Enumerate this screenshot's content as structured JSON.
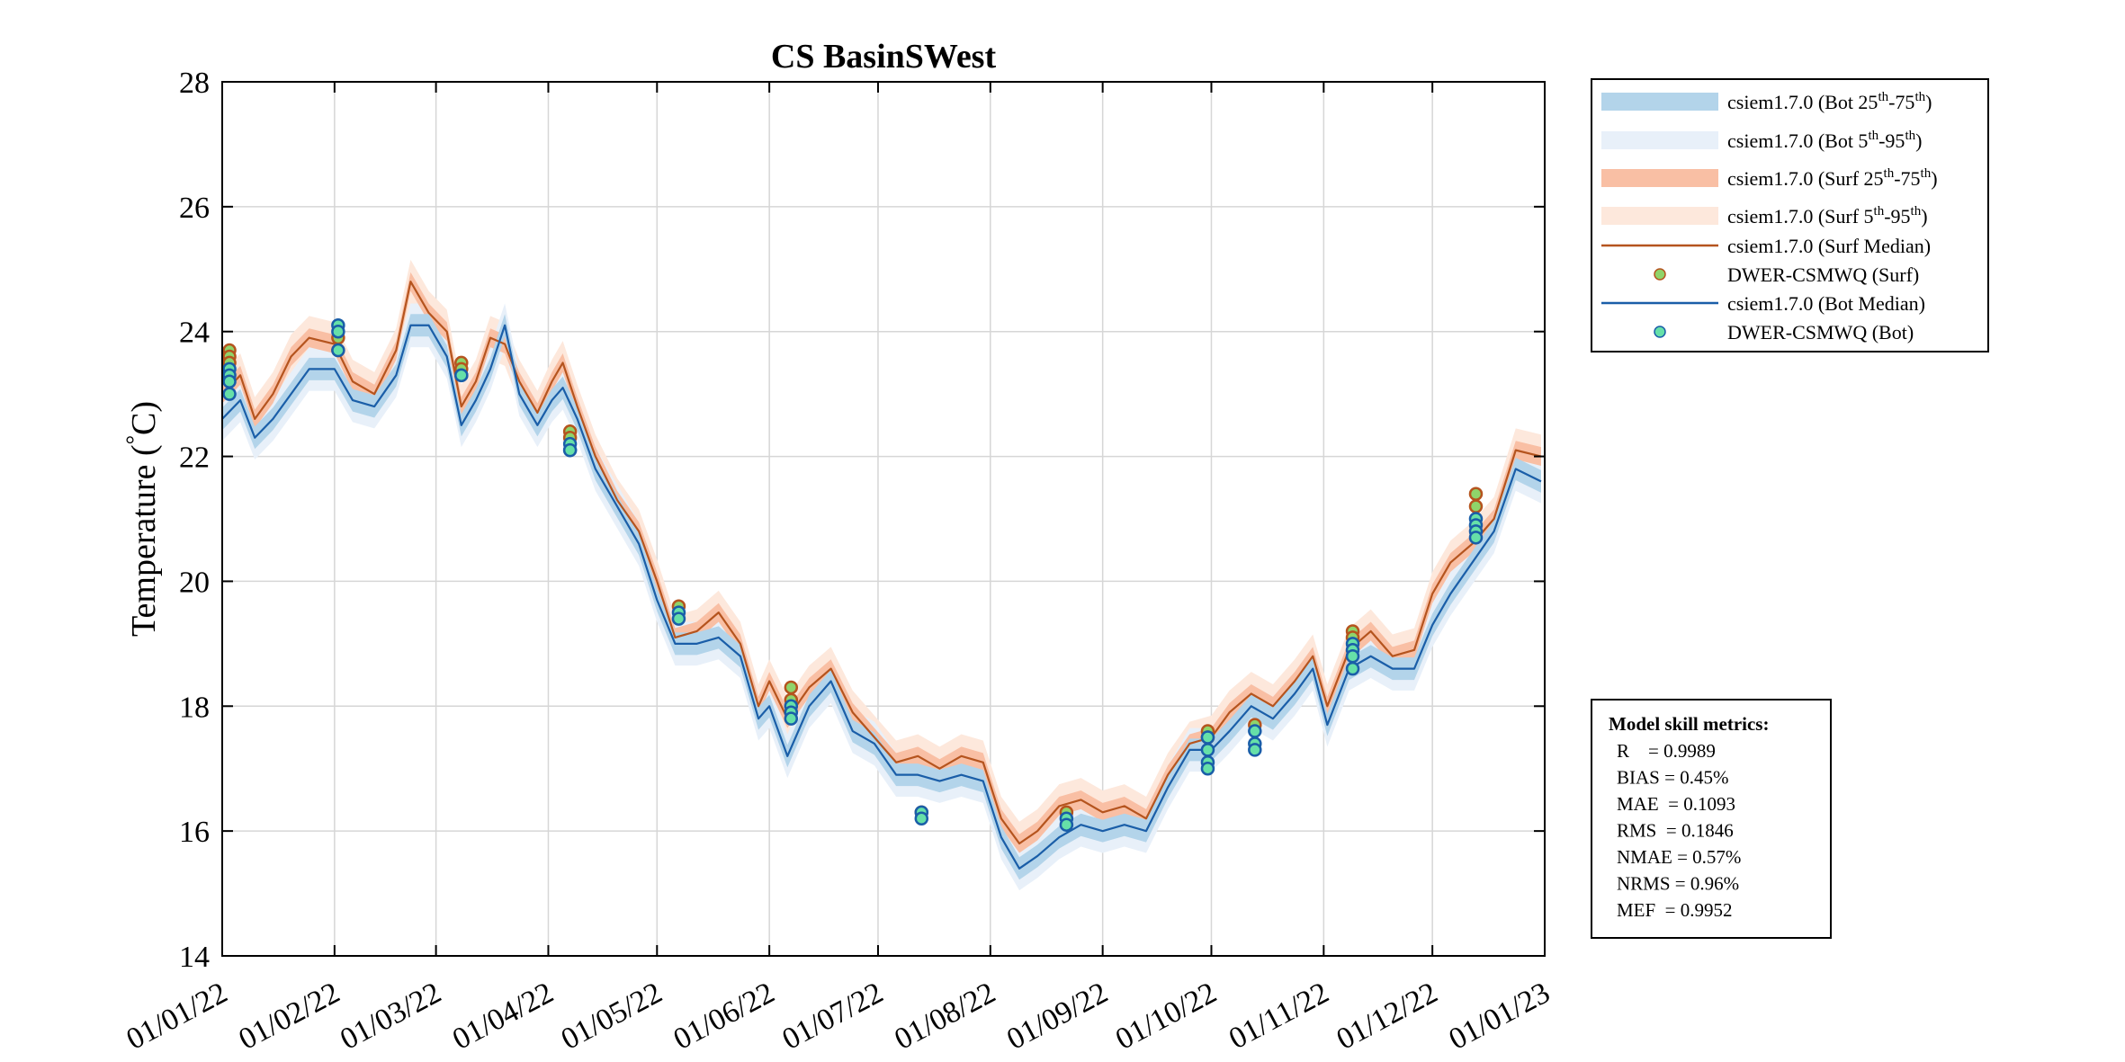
{
  "chart_data": {
    "type": "line",
    "title": "CS BasinSWest",
    "xlabel": "",
    "ylabel": "Temperature (°C)",
    "ylabel_main": "Temperature (",
    "ylabel_deg": "°",
    "ylabel_unit": "C)",
    "ylim": [
      14,
      28
    ],
    "yticks": [
      14,
      16,
      18,
      20,
      22,
      24,
      26,
      28
    ],
    "xlim": [
      "2022-01-01",
      "2023-01-01"
    ],
    "xticks": [
      "2022-01-01",
      "2022-02-01",
      "2022-03-01",
      "2022-04-01",
      "2022-05-01",
      "2022-06-01",
      "2022-07-01",
      "2022-08-01",
      "2022-09-01",
      "2022-10-01",
      "2022-11-01",
      "2022-12-01",
      "2023-01-01"
    ],
    "xtick_labels": [
      "01/01/22",
      "01/02/22",
      "01/03/22",
      "01/04/22",
      "01/05/22",
      "01/06/22",
      "01/07/22",
      "01/08/22",
      "01/09/22",
      "01/10/22",
      "01/11/22",
      "01/12/22",
      "01/01/23"
    ],
    "grid": true,
    "legend_position": "outside-top-right",
    "legend": [
      {
        "kind": "band",
        "color": "#b3d4ea",
        "label": "csiem1.7.0 (Bot 25",
        "sup1": "th",
        "mid": "-75",
        "sup2": "th",
        "end": ")"
      },
      {
        "kind": "band",
        "color": "#e8f0f9",
        "label": "csiem1.7.0 (Bot 5",
        "sup1": "th",
        "mid": "-95",
        "sup2": "th",
        "end": ")"
      },
      {
        "kind": "band",
        "color": "#f9bfa4",
        "label": "csiem1.7.0 (Surf 25",
        "sup1": "th",
        "mid": "-75",
        "sup2": "th",
        "end": ")"
      },
      {
        "kind": "band",
        "color": "#fde8dc",
        "label": "csiem1.7.0 (Surf 5",
        "sup1": "th",
        "mid": "-95",
        "sup2": "th",
        "end": ")"
      },
      {
        "kind": "line",
        "color": "#b5541e",
        "label": "csiem1.7.0 (Surf Median)"
      },
      {
        "kind": "marker",
        "color": "#8fd46a",
        "edge": "#b5541e",
        "label": "DWER-CSMWQ (Surf)"
      },
      {
        "kind": "line",
        "color": "#1a5ea8",
        "label": "csiem1.7.0 (Bot Median)"
      },
      {
        "kind": "marker",
        "color": "#66e0a8",
        "edge": "#1a5ea8",
        "label": "DWER-CSMWQ (Bot)"
      }
    ],
    "series": [
      {
        "name": "csiem1.7.0 (Surf Median)",
        "color": "#b5541e",
        "x": [
          "2022-01-01",
          "2022-01-06",
          "2022-01-10",
          "2022-01-15",
          "2022-01-20",
          "2022-01-25",
          "2022-02-01",
          "2022-02-06",
          "2022-02-12",
          "2022-02-18",
          "2022-02-22",
          "2022-02-27",
          "2022-03-04",
          "2022-03-08",
          "2022-03-12",
          "2022-03-16",
          "2022-03-20",
          "2022-03-24",
          "2022-03-29",
          "2022-04-02",
          "2022-04-05",
          "2022-04-09",
          "2022-04-14",
          "2022-04-20",
          "2022-04-26",
          "2022-05-01",
          "2022-05-06",
          "2022-05-12",
          "2022-05-18",
          "2022-05-24",
          "2022-05-29",
          "2022-06-01",
          "2022-06-06",
          "2022-06-12",
          "2022-06-18",
          "2022-06-24",
          "2022-06-30",
          "2022-07-06",
          "2022-07-12",
          "2022-07-18",
          "2022-07-24",
          "2022-07-30",
          "2022-08-04",
          "2022-08-09",
          "2022-08-14",
          "2022-08-20",
          "2022-08-26",
          "2022-09-01",
          "2022-09-07",
          "2022-09-13",
          "2022-09-19",
          "2022-09-25",
          "2022-10-01",
          "2022-10-06",
          "2022-10-12",
          "2022-10-18",
          "2022-10-24",
          "2022-10-29",
          "2022-11-02",
          "2022-11-08",
          "2022-11-14",
          "2022-11-20",
          "2022-11-26",
          "2022-12-01",
          "2022-12-06",
          "2022-12-12",
          "2022-12-18",
          "2022-12-24",
          "2022-12-31"
        ],
        "values": [
          23.0,
          23.3,
          22.6,
          23.0,
          23.6,
          23.9,
          23.8,
          23.2,
          23.0,
          23.7,
          24.8,
          24.3,
          24.0,
          22.8,
          23.2,
          23.9,
          23.8,
          23.2,
          22.7,
          23.2,
          23.5,
          22.8,
          22.0,
          21.3,
          20.8,
          20.0,
          19.1,
          19.2,
          19.5,
          19.0,
          18.0,
          18.4,
          17.8,
          18.3,
          18.6,
          17.9,
          17.5,
          17.1,
          17.2,
          17.0,
          17.2,
          17.1,
          16.2,
          15.8,
          16.0,
          16.4,
          16.5,
          16.3,
          16.4,
          16.2,
          16.9,
          17.4,
          17.5,
          17.9,
          18.2,
          18.0,
          18.4,
          18.8,
          18.0,
          18.9,
          19.2,
          18.8,
          18.9,
          19.8,
          20.3,
          20.6,
          21.0,
          22.1,
          22.0
        ]
      },
      {
        "name": "csiem1.7.0 (Bot Median)",
        "color": "#1a5ea8",
        "x": [
          "2022-01-01",
          "2022-01-06",
          "2022-01-10",
          "2022-01-15",
          "2022-01-20",
          "2022-01-25",
          "2022-02-01",
          "2022-02-06",
          "2022-02-12",
          "2022-02-18",
          "2022-02-22",
          "2022-02-27",
          "2022-03-04",
          "2022-03-08",
          "2022-03-12",
          "2022-03-16",
          "2022-03-20",
          "2022-03-24",
          "2022-03-29",
          "2022-04-02",
          "2022-04-05",
          "2022-04-09",
          "2022-04-14",
          "2022-04-20",
          "2022-04-26",
          "2022-05-01",
          "2022-05-06",
          "2022-05-12",
          "2022-05-18",
          "2022-05-24",
          "2022-05-29",
          "2022-06-01",
          "2022-06-06",
          "2022-06-12",
          "2022-06-18",
          "2022-06-24",
          "2022-06-30",
          "2022-07-06",
          "2022-07-12",
          "2022-07-18",
          "2022-07-24",
          "2022-07-30",
          "2022-08-04",
          "2022-08-09",
          "2022-08-14",
          "2022-08-20",
          "2022-08-26",
          "2022-09-01",
          "2022-09-07",
          "2022-09-13",
          "2022-09-19",
          "2022-09-25",
          "2022-10-01",
          "2022-10-06",
          "2022-10-12",
          "2022-10-18",
          "2022-10-24",
          "2022-10-29",
          "2022-11-02",
          "2022-11-08",
          "2022-11-14",
          "2022-11-20",
          "2022-11-26",
          "2022-12-01",
          "2022-12-06",
          "2022-12-12",
          "2022-12-18",
          "2022-12-24",
          "2022-12-31"
        ],
        "values": [
          22.6,
          22.9,
          22.3,
          22.6,
          23.0,
          23.4,
          23.4,
          22.9,
          22.8,
          23.3,
          24.1,
          24.1,
          23.6,
          22.5,
          22.9,
          23.4,
          24.1,
          23.0,
          22.5,
          22.9,
          23.1,
          22.6,
          21.8,
          21.2,
          20.6,
          19.7,
          19.0,
          19.0,
          19.1,
          18.8,
          17.8,
          18.0,
          17.2,
          18.0,
          18.4,
          17.6,
          17.4,
          16.9,
          16.9,
          16.8,
          16.9,
          16.8,
          15.9,
          15.4,
          15.6,
          15.9,
          16.1,
          16.0,
          16.1,
          16.0,
          16.7,
          17.3,
          17.3,
          17.6,
          18.0,
          17.8,
          18.2,
          18.6,
          17.7,
          18.6,
          18.8,
          18.6,
          18.6,
          19.3,
          19.8,
          20.3,
          20.8,
          21.8,
          21.6
        ]
      }
    ],
    "observations": [
      {
        "name": "DWER-CSMWQ (Surf)",
        "color": "#8fd46a",
        "edge": "#b5541e",
        "x": [
          "2022-01-03",
          "2022-01-03",
          "2022-01-03",
          "2022-02-02",
          "2022-02-02",
          "2022-03-08",
          "2022-03-08",
          "2022-04-07",
          "2022-04-07",
          "2022-05-07",
          "2022-06-07",
          "2022-06-07",
          "2022-07-13",
          "2022-08-22",
          "2022-09-30",
          "2022-09-30",
          "2022-10-13",
          "2022-11-09",
          "2022-11-09",
          "2022-12-13",
          "2022-12-13"
        ],
        "y": [
          23.7,
          23.6,
          23.5,
          23.9,
          23.7,
          23.5,
          23.4,
          22.4,
          22.3,
          19.6,
          18.3,
          18.1,
          16.3,
          16.3,
          17.6,
          17.5,
          17.7,
          19.2,
          19.1,
          21.4,
          21.2
        ]
      },
      {
        "name": "DWER-CSMWQ (Bot)",
        "color": "#66e0a8",
        "edge": "#1a5ea8",
        "x": [
          "2022-01-03",
          "2022-01-03",
          "2022-01-03",
          "2022-01-03",
          "2022-02-02",
          "2022-02-02",
          "2022-02-02",
          "2022-03-08",
          "2022-03-08",
          "2022-04-07",
          "2022-04-07",
          "2022-04-07",
          "2022-05-07",
          "2022-05-07",
          "2022-06-07",
          "2022-06-07",
          "2022-06-07",
          "2022-07-13",
          "2022-07-13",
          "2022-08-22",
          "2022-08-22",
          "2022-09-30",
          "2022-09-30",
          "2022-09-30",
          "2022-09-30",
          "2022-10-13",
          "2022-10-13",
          "2022-10-13",
          "2022-11-09",
          "2022-11-09",
          "2022-11-09",
          "2022-11-09",
          "2022-12-13",
          "2022-12-13",
          "2022-12-13",
          "2022-12-13"
        ],
        "y": [
          23.4,
          23.3,
          23.2,
          23.0,
          24.1,
          24.0,
          23.7,
          23.3,
          23.3,
          22.2,
          22.1,
          22.1,
          19.5,
          19.4,
          18.0,
          17.9,
          17.8,
          16.3,
          16.2,
          16.2,
          16.1,
          17.5,
          17.3,
          17.1,
          17.0,
          17.6,
          17.4,
          17.3,
          19.0,
          18.9,
          18.8,
          18.6,
          21.0,
          20.9,
          20.8,
          20.7
        ]
      }
    ],
    "metrics": {
      "title": "Model skill metrics:",
      "lines": [
        "R    = 0.9989",
        "BIAS = 0.45%",
        "MAE  = 0.1093",
        "RMS  = 0.1846",
        "NMAE = 0.57%",
        "NRMS = 0.96%",
        "MEF  = 0.9952"
      ]
    }
  }
}
